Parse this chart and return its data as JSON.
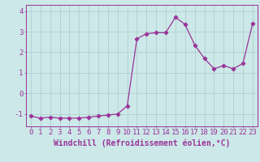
{
  "x": [
    0,
    1,
    2,
    3,
    4,
    5,
    6,
    7,
    8,
    9,
    10,
    11,
    12,
    13,
    14,
    15,
    16,
    17,
    18,
    19,
    20,
    21,
    22,
    23
  ],
  "y": [
    -1.1,
    -1.2,
    -1.15,
    -1.2,
    -1.2,
    -1.2,
    -1.15,
    -1.1,
    -1.05,
    -1.0,
    -0.6,
    2.65,
    2.9,
    2.95,
    2.95,
    3.7,
    3.35,
    2.35,
    1.7,
    1.2,
    1.35,
    1.2,
    1.45,
    3.4
  ],
  "line_color": "#993399",
  "marker": "D",
  "bg_color": "#cce8e8",
  "grid_color": "#aacccc",
  "spine_color": "#993399",
  "tick_color": "#993399",
  "label_color": "#993399",
  "xlabel": "Windchill (Refroidissement éolien,°C)",
  "ylim": [
    -1.6,
    4.3
  ],
  "xlim": [
    -0.5,
    23.5
  ],
  "yticks": [
    -1,
    0,
    1,
    2,
    3,
    4
  ],
  "xticks": [
    0,
    1,
    2,
    3,
    4,
    5,
    6,
    7,
    8,
    9,
    10,
    11,
    12,
    13,
    14,
    15,
    16,
    17,
    18,
    19,
    20,
    21,
    22,
    23
  ],
  "font_size": 6.5,
  "xlabel_fontsize": 7,
  "lw": 0.9,
  "markersize": 2.5
}
